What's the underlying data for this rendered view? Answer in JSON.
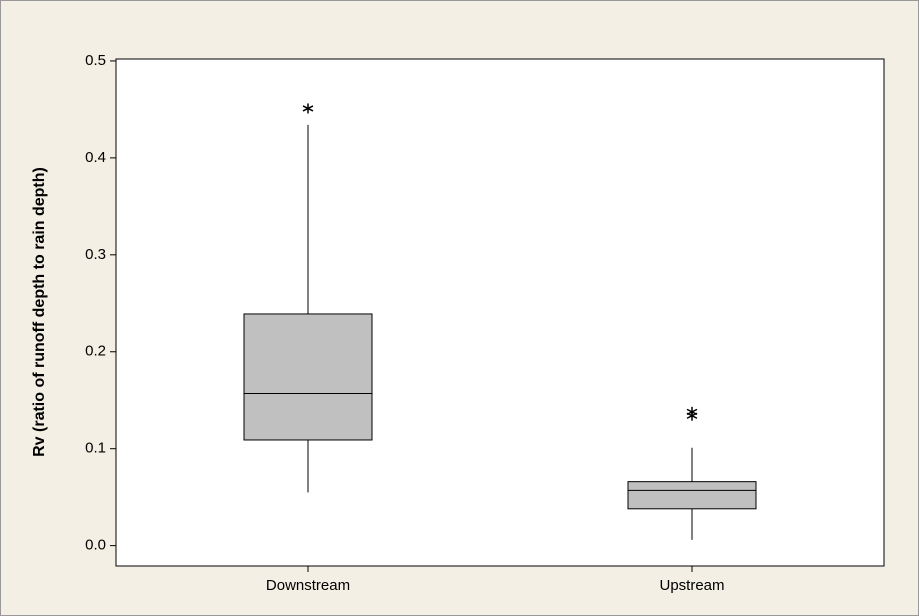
{
  "chart_data": {
    "type": "box",
    "y_label": "Rv (ratio of runoff depth to rain depth)",
    "categories": [
      "Downstream",
      "Upstream"
    ],
    "boxes": [
      {
        "whislo": 0.055,
        "q1": 0.109,
        "med": 0.157,
        "q3": 0.239,
        "whishi": 0.434,
        "fliers": [
          0.451
        ]
      },
      {
        "whislo": 0.006,
        "q1": 0.038,
        "med": 0.057,
        "q3": 0.066,
        "whishi": 0.101,
        "fliers": [
          0.138,
          0.134
        ]
      }
    ],
    "color": "#c0c0c0",
    "ylim": [
      -0.021,
      0.502
    ],
    "yticks": [
      {
        "value": 0,
        "label": "0.0"
      },
      0.1,
      0.2,
      0.3,
      0.4,
      0.5
    ]
  }
}
